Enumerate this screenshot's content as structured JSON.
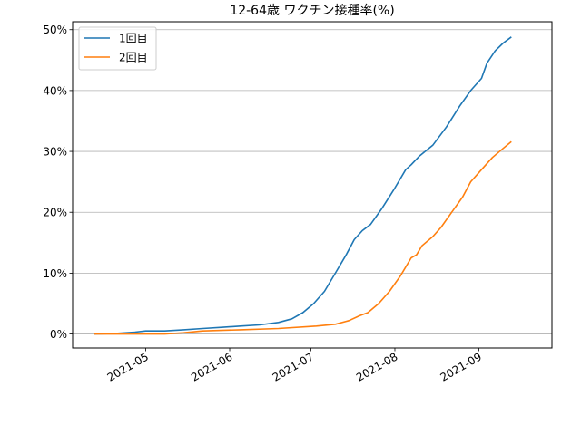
{
  "chart_data": {
    "type": "line",
    "title": "12-64歳 ワクチン接種率(%)",
    "xlabel": "",
    "ylabel": "",
    "x_ticks": [
      "2021-05",
      "2021-06",
      "2021-07",
      "2021-08",
      "2021-09"
    ],
    "x_tick_dates": [
      "2021-05-01",
      "2021-06-01",
      "2021-07-01",
      "2021-08-01",
      "2021-09-01"
    ],
    "xlim": [
      "2021-04-04",
      "2021-09-28"
    ],
    "y_ticks": [
      0,
      10,
      20,
      30,
      40,
      50
    ],
    "y_tick_labels": [
      "0%",
      "10%",
      "20%",
      "30%",
      "40%",
      "50%"
    ],
    "ylim": [
      -2.3,
      51.3
    ],
    "grid": "horizontal",
    "legend_position": "top-left",
    "series": [
      {
        "name": "1回目",
        "color": "#1f77b4",
        "points": [
          [
            "2021-04-12",
            0.0
          ],
          [
            "2021-04-20",
            0.1
          ],
          [
            "2021-04-27",
            0.3
          ],
          [
            "2021-05-01",
            0.5
          ],
          [
            "2021-05-08",
            0.5
          ],
          [
            "2021-05-15",
            0.7
          ],
          [
            "2021-05-22",
            0.9
          ],
          [
            "2021-05-29",
            1.1
          ],
          [
            "2021-06-05",
            1.3
          ],
          [
            "2021-06-12",
            1.5
          ],
          [
            "2021-06-19",
            1.9
          ],
          [
            "2021-06-24",
            2.5
          ],
          [
            "2021-06-28",
            3.5
          ],
          [
            "2021-07-02",
            5.0
          ],
          [
            "2021-07-06",
            7.0
          ],
          [
            "2021-07-10",
            10.0
          ],
          [
            "2021-07-14",
            13.0
          ],
          [
            "2021-07-17",
            15.5
          ],
          [
            "2021-07-20",
            17.0
          ],
          [
            "2021-07-23",
            18.0
          ],
          [
            "2021-07-27",
            20.5
          ],
          [
            "2021-08-01",
            24.0
          ],
          [
            "2021-08-05",
            27.0
          ],
          [
            "2021-08-07",
            27.8
          ],
          [
            "2021-08-10",
            29.2
          ],
          [
            "2021-08-15",
            31.0
          ],
          [
            "2021-08-20",
            34.0
          ],
          [
            "2021-08-25",
            37.5
          ],
          [
            "2021-08-29",
            40.0
          ],
          [
            "2021-09-02",
            42.0
          ],
          [
            "2021-09-04",
            44.5
          ],
          [
            "2021-09-07",
            46.5
          ],
          [
            "2021-09-10",
            47.8
          ],
          [
            "2021-09-13",
            48.8
          ]
        ]
      },
      {
        "name": "2回目",
        "color": "#ff7f0e",
        "points": [
          [
            "2021-04-12",
            0.0
          ],
          [
            "2021-05-08",
            0.0
          ],
          [
            "2021-05-15",
            0.2
          ],
          [
            "2021-05-22",
            0.5
          ],
          [
            "2021-06-05",
            0.7
          ],
          [
            "2021-06-19",
            0.9
          ],
          [
            "2021-07-03",
            1.3
          ],
          [
            "2021-07-10",
            1.6
          ],
          [
            "2021-07-15",
            2.2
          ],
          [
            "2021-07-19",
            3.0
          ],
          [
            "2021-07-22",
            3.5
          ],
          [
            "2021-07-26",
            5.0
          ],
          [
            "2021-07-30",
            7.0
          ],
          [
            "2021-08-03",
            9.5
          ],
          [
            "2021-08-07",
            12.5
          ],
          [
            "2021-08-09",
            13.0
          ],
          [
            "2021-08-11",
            14.5
          ],
          [
            "2021-08-15",
            16.0
          ],
          [
            "2021-08-18",
            17.5
          ],
          [
            "2021-08-22",
            20.0
          ],
          [
            "2021-08-26",
            22.5
          ],
          [
            "2021-08-29",
            25.0
          ],
          [
            "2021-09-02",
            27.0
          ],
          [
            "2021-09-06",
            29.0
          ],
          [
            "2021-09-10",
            30.5
          ],
          [
            "2021-09-13",
            31.6
          ]
        ]
      }
    ]
  }
}
